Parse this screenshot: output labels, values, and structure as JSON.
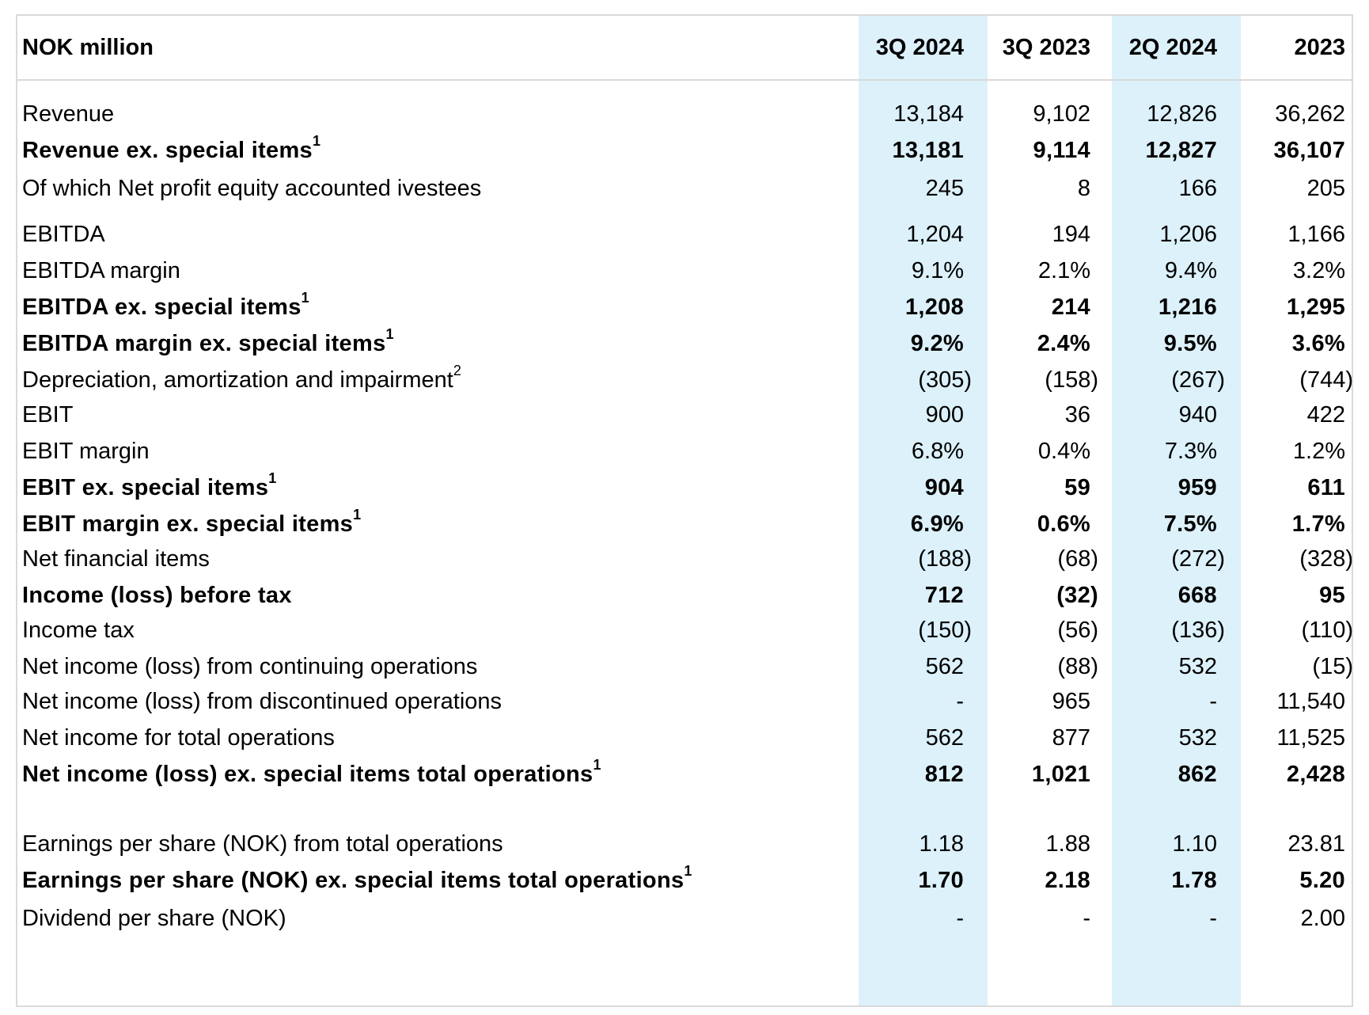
{
  "header": {
    "unit_label": "NOK million",
    "columns": [
      "3Q 2024",
      "3Q 2023",
      "2Q 2024",
      "2023"
    ]
  },
  "rows": [
    {
      "label": "Revenue",
      "sup": "",
      "bold": false,
      "values": [
        "13,184",
        "9,102",
        "12,826",
        "36,262"
      ]
    },
    {
      "label": "Revenue ex. special items",
      "sup": "1",
      "bold": true,
      "values": [
        "13,181",
        "9,114",
        "12,827",
        "36,107"
      ]
    },
    {
      "label": "Of which Net profit equity accounted ivestees",
      "sup": "",
      "bold": false,
      "values": [
        "245",
        "8",
        "166",
        "205"
      ]
    },
    {
      "label": "EBITDA",
      "sup": "",
      "bold": false,
      "values": [
        "1,204",
        "194",
        "1,206",
        "1,166"
      ]
    },
    {
      "label": "EBITDA margin",
      "sup": "",
      "bold": false,
      "values": [
        "9.1%",
        "2.1%",
        "9.4%",
        "3.2%"
      ]
    },
    {
      "label": "EBITDA ex. special items",
      "sup": "1",
      "bold": true,
      "values": [
        "1,208",
        "214",
        "1,216",
        "1,295"
      ]
    },
    {
      "label": "EBITDA margin ex. special items",
      "sup": "1",
      "bold": true,
      "values": [
        "9.2%",
        "2.4%",
        "9.5%",
        "3.6%"
      ]
    },
    {
      "label": "Depreciation, amortization and impairment",
      "sup": "2",
      "bold": false,
      "values": [
        "(305)",
        "(158)",
        "(267)",
        "(744)"
      ]
    },
    {
      "label": "EBIT",
      "sup": "",
      "bold": false,
      "values": [
        "900",
        "36",
        "940",
        "422"
      ]
    },
    {
      "label": "EBIT margin",
      "sup": "",
      "bold": false,
      "values": [
        "6.8%",
        "0.4%",
        "7.3%",
        "1.2%"
      ]
    },
    {
      "label": "EBIT ex. special items",
      "sup": "1",
      "bold": true,
      "values": [
        "904",
        "59",
        "959",
        "611"
      ]
    },
    {
      "label": "EBIT margin ex. special items",
      "sup": "1",
      "bold": true,
      "values": [
        "6.9%",
        "0.6%",
        "7.5%",
        "1.7%"
      ]
    },
    {
      "label": "Net financial items",
      "sup": "",
      "bold": false,
      "values": [
        "(188)",
        "(68)",
        "(272)",
        "(328)"
      ]
    },
    {
      "label": "Income (loss) before tax",
      "sup": "",
      "bold": true,
      "values": [
        "712",
        "(32)",
        "668",
        "95"
      ]
    },
    {
      "label": "Income tax",
      "sup": "",
      "bold": false,
      "values": [
        "(150)",
        "(56)",
        "(136)",
        "(110)"
      ]
    },
    {
      "label": "Net income (loss) from continuing operations",
      "sup": "",
      "bold": false,
      "values": [
        "562",
        "(88)",
        "532",
        "(15)"
      ]
    },
    {
      "label": "Net income (loss) from discontinued operations",
      "sup": "",
      "bold": false,
      "values": [
        "-",
        "965",
        "-",
        "11,540"
      ]
    },
    {
      "label": "Net income for total operations",
      "sup": "",
      "bold": false,
      "values": [
        "562",
        "877",
        "532",
        "11,525"
      ]
    },
    {
      "label": "Net income (loss) ex. special items total operations",
      "sup": "1",
      "bold": true,
      "values": [
        "812",
        "1,021",
        "862",
        "2,428"
      ]
    },
    {
      "label": "Earnings per share (NOK) from total operations",
      "sup": "",
      "bold": false,
      "values": [
        "1.18",
        "1.88",
        "1.10",
        "23.81"
      ]
    },
    {
      "label": "Earnings per share (NOK) ex. special items total operations",
      "sup": "1",
      "bold": true,
      "values": [
        "1.70",
        "2.18",
        "1.78",
        "5.20"
      ]
    },
    {
      "label": "Dividend per share (NOK)",
      "sup": "",
      "bold": false,
      "values": [
        "-",
        "-",
        "-",
        "2.00"
      ]
    }
  ]
}
